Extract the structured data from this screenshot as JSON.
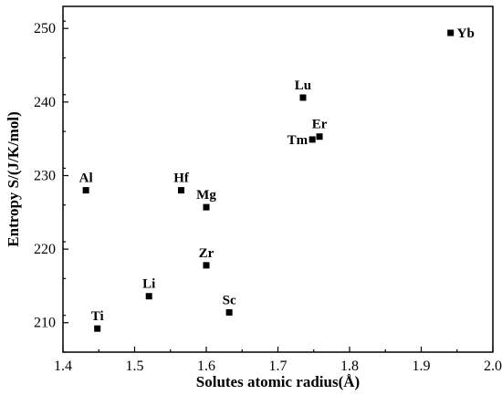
{
  "chart_data": {
    "type": "scatter",
    "xlabel": "Solutes atomic radius(Å)",
    "ylabel": "Entropy S/(J/K/mol)",
    "xlim": [
      1.4,
      2.0
    ],
    "ylim": [
      206,
      253
    ],
    "x_ticks": [
      1.4,
      1.5,
      1.6,
      1.7,
      1.8,
      1.9,
      2.0
    ],
    "x_tick_labels": [
      "1.4",
      "1.5",
      "1.6",
      "1.7",
      "1.8",
      "1.9",
      "2.0"
    ],
    "y_ticks": [
      210,
      220,
      230,
      240,
      250
    ],
    "y_tick_labels": [
      "210",
      "220",
      "230",
      "240",
      "250"
    ],
    "grid": false,
    "marker": "square",
    "marker_color": "#000000",
    "points": [
      {
        "label": "Ti",
        "x": 1.448,
        "y": 209.2,
        "pos": "above"
      },
      {
        "label": "Li",
        "x": 1.52,
        "y": 213.6,
        "pos": "above"
      },
      {
        "label": "Al",
        "x": 1.432,
        "y": 228.0,
        "pos": "above"
      },
      {
        "label": "Hf",
        "x": 1.565,
        "y": 228.0,
        "pos": "above"
      },
      {
        "label": "Mg",
        "x": 1.6,
        "y": 225.7,
        "pos": "above"
      },
      {
        "label": "Zr",
        "x": 1.6,
        "y": 217.8,
        "pos": "above"
      },
      {
        "label": "Sc",
        "x": 1.632,
        "y": 211.4,
        "pos": "above"
      },
      {
        "label": "Lu",
        "x": 1.735,
        "y": 240.6,
        "pos": "above"
      },
      {
        "label": "Tm",
        "x": 1.748,
        "y": 234.9,
        "pos": "left"
      },
      {
        "label": "Er",
        "x": 1.758,
        "y": 235.3,
        "pos": "above"
      },
      {
        "label": "Yb",
        "x": 1.941,
        "y": 249.4,
        "pos": "right"
      }
    ]
  }
}
